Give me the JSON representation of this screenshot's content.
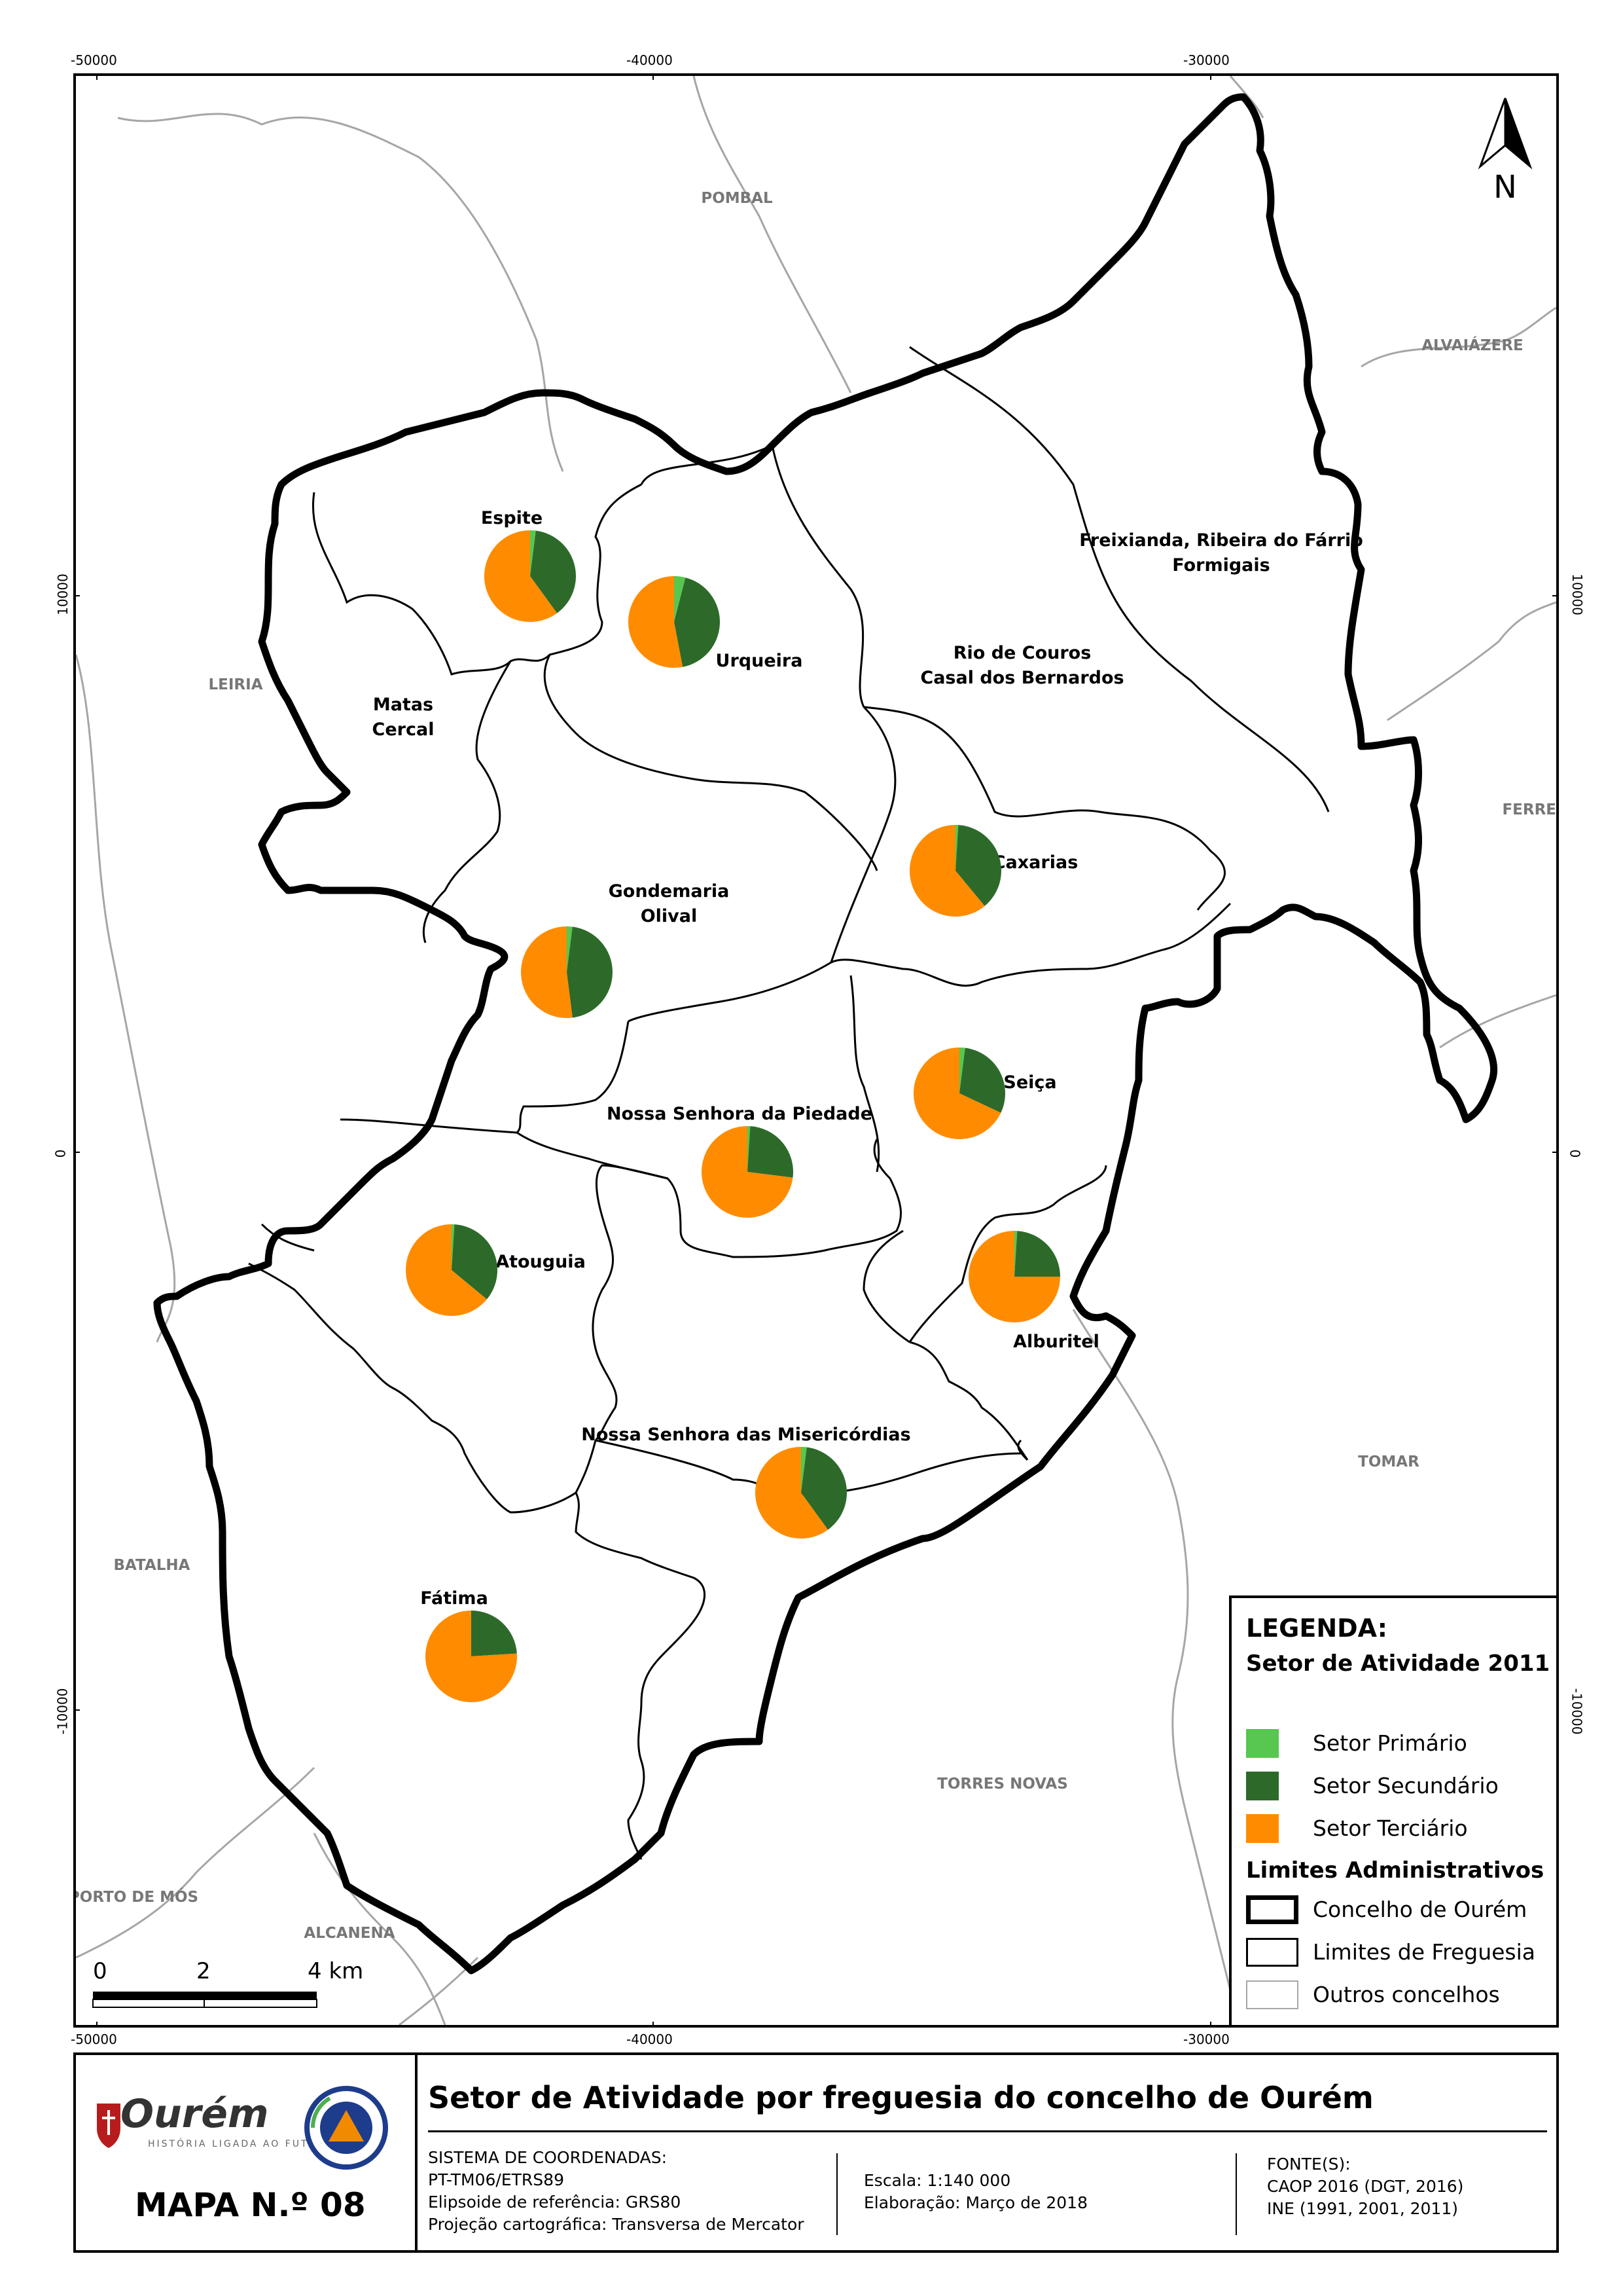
{
  "map": {
    "coords_top": [
      "-50000",
      "-40000",
      "-30000"
    ],
    "coords_bottom": [
      "-50000",
      "-40000",
      "-30000"
    ],
    "coords_left": [
      "10000",
      "0",
      "-10000"
    ],
    "coords_right": [
      "10000",
      "0",
      "-10000"
    ],
    "neighbour_labels": [
      "POMBAL",
      "ALVAIÁZERE",
      "LEIRIA",
      "FERRE",
      "TOMAR",
      "BATALHA",
      "TORRES NOVAS",
      "PORTO DE MÓS",
      "ALCANENA"
    ],
    "north_label": "N",
    "scale": {
      "zero": "0",
      "mid": "2",
      "end": "4 km"
    },
    "parishes": [
      {
        "label": "Espite",
        "primary": 2,
        "secondary": 38,
        "tertiary": 60
      },
      {
        "label": "Urqueira",
        "primary": 4,
        "secondary": 43,
        "tertiary": 53
      },
      {
        "label": "Matas Cercal"
      },
      {
        "label": "Freixianda, Ribeira do Fárrio Formigais"
      },
      {
        "label": "Rio de Couros Casal dos Bernardos"
      },
      {
        "label": "Caxarias",
        "primary": 1,
        "secondary": 38,
        "tertiary": 61
      },
      {
        "label": "Gondemaria Olival",
        "primary": 2,
        "secondary": 46,
        "tertiary": 52
      },
      {
        "label": "Seiça",
        "primary": 2,
        "secondary": 30,
        "tertiary": 68
      },
      {
        "label": "Nossa Senhora da Piedade",
        "primary": 1,
        "secondary": 26,
        "tertiary": 73
      },
      {
        "label": "Atouguia",
        "primary": 1,
        "secondary": 35,
        "tertiary": 64
      },
      {
        "label": "Alburitel",
        "primary": 1,
        "secondary": 24,
        "tertiary": 75
      },
      {
        "label": "Nossa Senhora das Misericórdias",
        "primary": 2,
        "secondary": 38,
        "tertiary": 60
      },
      {
        "label": "Fátima",
        "primary": 0,
        "secondary": 24,
        "tertiary": 76
      }
    ]
  },
  "colors": {
    "primary": "#57c74f",
    "secondary": "#2d6a2a",
    "tertiary": "#ff8c00",
    "concelho_border": "#000000",
    "freguesia_border": "#000000",
    "outros_border": "#a6a6a6"
  },
  "legend": {
    "title": "LEGENDA:",
    "subtitle": "Setor de Atividade 2011",
    "items": [
      "Setor Primário",
      "Setor Secundário",
      "Setor Terciário"
    ],
    "admin_title": "Limites Administrativos",
    "admin_items": [
      "Concelho de Ourém",
      "Limites de Freguesia",
      "Outros concelhos"
    ]
  },
  "footer": {
    "brand": "Ourém",
    "brand_sub": "HISTÓRIA LIGADA AO FUTURO",
    "map_number": "MAPA N.º 08",
    "title": "Setor de Atividade por freguesia do concelho de Ourém",
    "coord_system": [
      "SISTEMA DE COORDENADAS:",
      "PT-TM06/ETRS89",
      "Elipsoide de referência: GRS80",
      "Projeção cartográfica: Transversa de Mercator"
    ],
    "scale_info": [
      "Escala:   1:140 000",
      "Elaboração:    Março de 2018"
    ],
    "sources": [
      "FONTE(S):",
      "CAOP 2016 (DGT, 2016)",
      "INE (1991, 2001, 2011)"
    ]
  }
}
